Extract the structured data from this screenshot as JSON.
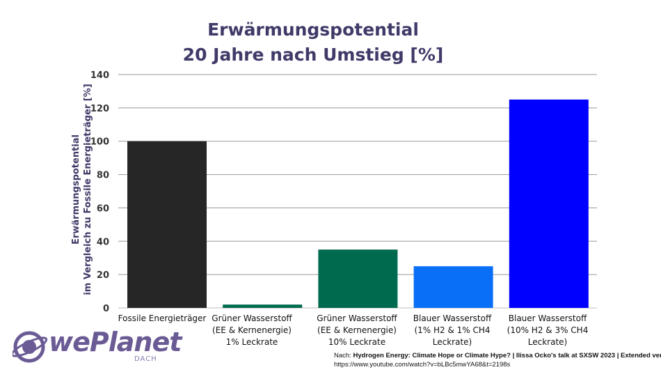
{
  "chart_data": {
    "type": "bar",
    "title_line1": "Erwärmungspotential",
    "title_line2": "20 Jahre nach Umstieg [%]",
    "ylabel_line1": "Erwärmungspotential",
    "ylabel_line2": "im Vergleich zu Fossile Energieträger [%]",
    "ylim": [
      0,
      140
    ],
    "yticks": [
      0,
      20,
      40,
      60,
      80,
      100,
      120,
      140
    ],
    "grid": true,
    "categories": [
      "Fossile Energieträger",
      "Grüner Wasserstoff\n(EE & Kernenergie)\n1% Leckrate",
      "Grüner Wasserstoff\n(EE & Kernenergie)\n10% Leckrate",
      "Blauer Wasserstoff\n(1% H2 & 1% CH4\nLeckrate)",
      "Blauer Wasserstoff\n(10% H2 & 3% CH4\nLeckrate)"
    ],
    "values": [
      100,
      2,
      35,
      25,
      125
    ],
    "colors": [
      "#262626",
      "#006a4e",
      "#006a4e",
      "#0a6ff7",
      "#0000ff"
    ]
  },
  "source": {
    "line1_prefix": "Nach: ",
    "line1_rest": "Hydrogen Energy: Climate Hope or Climate  Hype? | Ilissa Ocko's talk at SXSW 2023  | Extended version",
    "line2": "https://www.youtube.com/watch?v=bLBc5mwYA68&t=2198s"
  },
  "logo": {
    "name": "wePlanet",
    "sub": "DACH"
  },
  "colors": {
    "title": "#3f3a68",
    "grid": "#9a9a9a",
    "logo": "#6b5b95"
  }
}
